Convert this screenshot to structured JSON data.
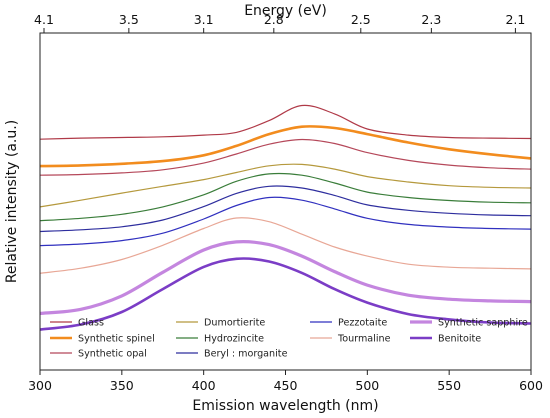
{
  "chart_data": {
    "type": "line",
    "title": "",
    "xlabel": "Emission wavelength (nm)",
    "ylabel": "Relative intensity (a.u.)",
    "top_axis_label": "Energy (eV)",
    "xlim": [
      300,
      600
    ],
    "ylim": [
      0,
      1
    ],
    "x_ticks": [
      "300",
      "350",
      "400",
      "450",
      "500",
      "550",
      "600"
    ],
    "top_ticks": [
      "4.1",
      "3.5",
      "3.1",
      "2.8",
      "2.5",
      "2.3",
      "2.1"
    ],
    "y_ticks_shown": false,
    "grid": false,
    "legend_position": "bottom",
    "x": [
      300,
      325,
      350,
      375,
      400,
      420,
      440,
      460,
      480,
      500,
      525,
      550,
      575,
      600
    ],
    "series": [
      {
        "name": "Glass",
        "color": "#b03a48",
        "width": 1.2,
        "values": [
          0.685,
          0.688,
          0.69,
          0.692,
          0.697,
          0.705,
          0.74,
          0.785,
          0.76,
          0.715,
          0.697,
          0.69,
          0.688,
          0.687
        ]
      },
      {
        "name": "Synthetic spinel",
        "color": "#f28c1e",
        "width": 2.6,
        "values": [
          0.605,
          0.607,
          0.612,
          0.62,
          0.637,
          0.665,
          0.7,
          0.722,
          0.718,
          0.7,
          0.675,
          0.655,
          0.64,
          0.628
        ]
      },
      {
        "name": "Synthetic opal",
        "color": "#b5485a",
        "width": 1.2,
        "values": [
          0.578,
          0.58,
          0.585,
          0.594,
          0.614,
          0.641,
          0.67,
          0.684,
          0.672,
          0.645,
          0.622,
          0.608,
          0.6,
          0.596
        ]
      },
      {
        "name": "Dumortierite",
        "color": "#b5993d",
        "width": 1.2,
        "values": [
          0.484,
          0.504,
          0.525,
          0.545,
          0.565,
          0.586,
          0.606,
          0.61,
          0.596,
          0.574,
          0.558,
          0.547,
          0.542,
          0.54
        ]
      },
      {
        "name": "Hydrozincite",
        "color": "#3a7d3a",
        "width": 1.2,
        "values": [
          0.443,
          0.45,
          0.462,
          0.484,
          0.52,
          0.56,
          0.582,
          0.578,
          0.555,
          0.528,
          0.512,
          0.503,
          0.498,
          0.496
        ]
      },
      {
        "name": "Beryl : morganite",
        "color": "#2e2e9e",
        "width": 1.2,
        "values": [
          0.411,
          0.416,
          0.425,
          0.445,
          0.485,
          0.524,
          0.545,
          0.54,
          0.518,
          0.49,
          0.474,
          0.465,
          0.46,
          0.458
        ]
      },
      {
        "name": "Pezzotaite",
        "color": "#3030bf",
        "width": 1.2,
        "values": [
          0.369,
          0.374,
          0.384,
          0.406,
          0.448,
          0.488,
          0.512,
          0.504,
          0.478,
          0.45,
          0.432,
          0.424,
          0.42,
          0.418
        ]
      },
      {
        "name": "Tourmaline",
        "color": "#e8a796",
        "width": 1.2,
        "values": [
          0.287,
          0.302,
          0.328,
          0.37,
          0.42,
          0.451,
          0.44,
          0.403,
          0.365,
          0.338,
          0.314,
          0.305,
          0.302,
          0.3
        ]
      },
      {
        "name": "Synthetic sapphire",
        "color": "#c486df",
        "width": 3.2,
        "values": [
          0.168,
          0.18,
          0.22,
          0.29,
          0.356,
          0.38,
          0.372,
          0.338,
          0.292,
          0.252,
          0.222,
          0.21,
          0.205,
          0.203
        ]
      },
      {
        "name": "Benitoite",
        "color": "#7b3dc6",
        "width": 2.6,
        "values": [
          0.12,
          0.135,
          0.172,
          0.24,
          0.306,
          0.33,
          0.322,
          0.288,
          0.24,
          0.2,
          0.166,
          0.15,
          0.141,
          0.138
        ]
      }
    ]
  }
}
